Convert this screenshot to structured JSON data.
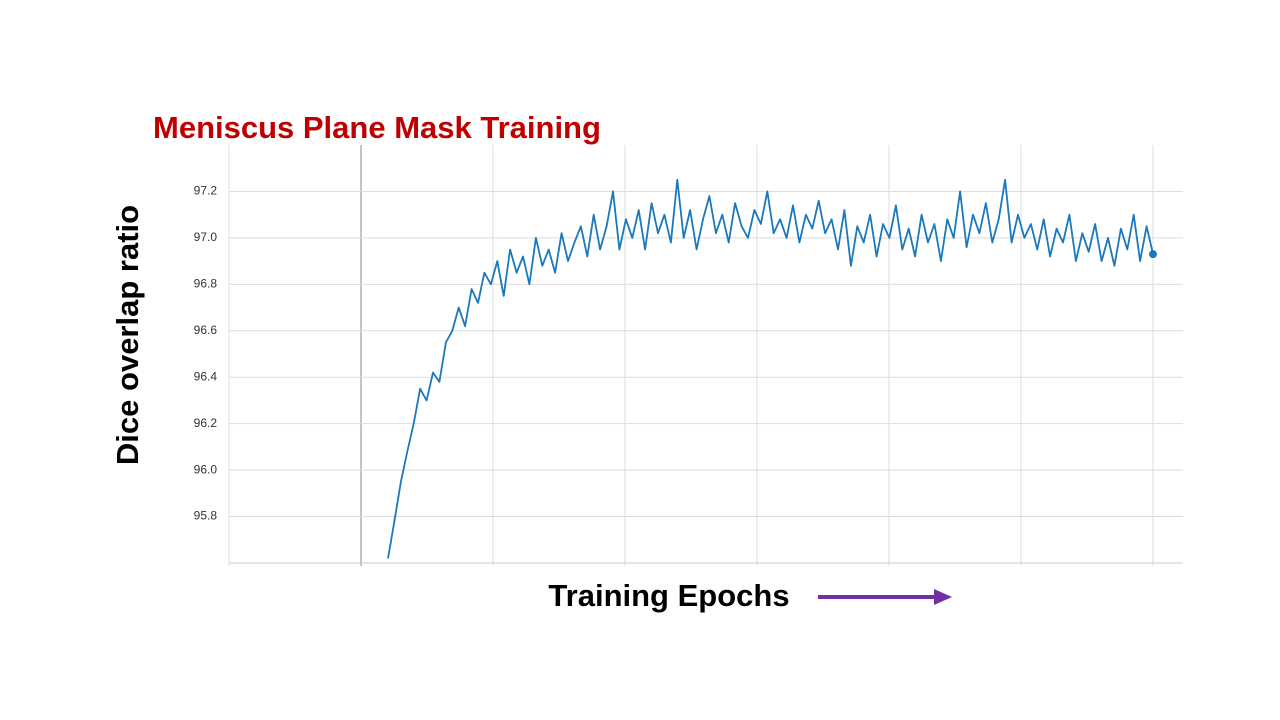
{
  "chart_data": {
    "type": "line",
    "title": "Meniscus Plane Mask Training",
    "xlabel": "Training Epochs",
    "ylabel": "Dice overlap ratio",
    "color": "#1a78bd",
    "grid": true,
    "ylim": [
      95.6,
      97.4
    ],
    "yticks": [
      {
        "value": 95.8,
        "label": "95.8"
      },
      {
        "value": 96.0,
        "label": "96.0"
      },
      {
        "value": 96.2,
        "label": "96.2"
      },
      {
        "value": 96.4,
        "label": "96.4"
      },
      {
        "value": 96.6,
        "label": "96.6"
      },
      {
        "value": 96.8,
        "label": "96.8"
      },
      {
        "value": 97.0,
        "label": "97.0"
      },
      {
        "value": 97.2,
        "label": "97.2"
      }
    ],
    "values": [
      95.62,
      95.78,
      95.95,
      96.08,
      96.2,
      96.35,
      96.3,
      96.42,
      96.38,
      96.55,
      96.6,
      96.7,
      96.62,
      96.78,
      96.72,
      96.85,
      96.8,
      96.9,
      96.75,
      96.95,
      96.85,
      96.92,
      96.8,
      97.0,
      96.88,
      96.95,
      96.85,
      97.02,
      96.9,
      96.98,
      97.05,
      96.92,
      97.1,
      96.95,
      97.05,
      97.2,
      96.95,
      97.08,
      97.0,
      97.12,
      96.95,
      97.15,
      97.02,
      97.1,
      96.98,
      97.25,
      97.0,
      97.12,
      96.95,
      97.08,
      97.18,
      97.02,
      97.1,
      96.98,
      97.15,
      97.05,
      97.0,
      97.12,
      97.06,
      97.2,
      97.02,
      97.08,
      97.0,
      97.14,
      96.98,
      97.1,
      97.04,
      97.16,
      97.02,
      97.08,
      96.95,
      97.12,
      96.88,
      97.05,
      96.98,
      97.1,
      96.92,
      97.06,
      97.0,
      97.14,
      96.95,
      97.04,
      96.92,
      97.1,
      96.98,
      97.06,
      96.9,
      97.08,
      97.0,
      97.2,
      96.96,
      97.1,
      97.02,
      97.15,
      96.98,
      97.08,
      97.25,
      96.98,
      97.1,
      97.0,
      97.06,
      96.95,
      97.08,
      96.92,
      97.04,
      96.98,
      97.1,
      96.9,
      97.02,
      96.94,
      97.06,
      96.9,
      97.0,
      96.88,
      97.04,
      96.95,
      97.1,
      96.9,
      97.05,
      96.93
    ]
  }
}
